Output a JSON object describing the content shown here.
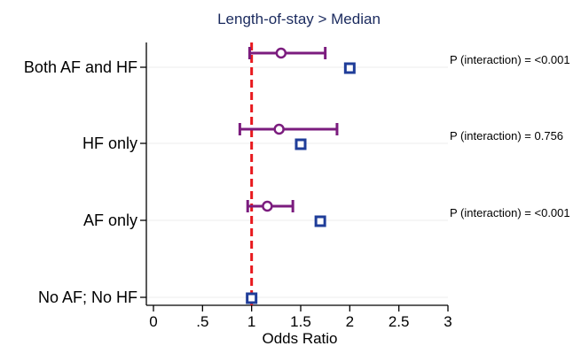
{
  "chart_data": {
    "type": "scatter",
    "title": "Length-of-stay > Median",
    "xlabel": "Odds Ratio",
    "xlim": [
      0,
      3
    ],
    "xticks": [
      {
        "value": 0,
        "label": "0"
      },
      {
        "value": 0.5,
        "label": ".5"
      },
      {
        "value": 1,
        "label": "1"
      },
      {
        "value": 1.5,
        "label": "1.5"
      },
      {
        "value": 2,
        "label": "2"
      },
      {
        "value": 2.5,
        "label": "2.5"
      },
      {
        "value": 3,
        "label": "3"
      }
    ],
    "reference_line": 1,
    "categories": [
      "Both AF and HF",
      "HF only",
      "AF only",
      "No AF; No HF"
    ],
    "series": [
      {
        "marker": "circle",
        "color": "#7b1c7e",
        "points": [
          {
            "category": "Both AF and HF",
            "or": 1.3,
            "lower": 0.98,
            "upper": 1.75
          },
          {
            "category": "HF only",
            "or": 1.28,
            "lower": 0.88,
            "upper": 1.87
          },
          {
            "category": "AF only",
            "or": 1.16,
            "lower": 0.96,
            "upper": 1.42
          }
        ]
      },
      {
        "marker": "square",
        "color": "#1f3d99",
        "points": [
          {
            "category": "Both AF and HF",
            "or": 2.0
          },
          {
            "category": "HF only",
            "or": 1.5
          },
          {
            "category": "AF only",
            "or": 1.7
          },
          {
            "category": "No AF; No HF",
            "or": 1.0
          }
        ]
      }
    ],
    "annotations": [
      {
        "category": "Both AF and HF",
        "text": "P (interaction) = <0.001"
      },
      {
        "category": "HF only",
        "text": "P (interaction) = 0.756"
      },
      {
        "category": "AF only",
        "text": "P (interaction) = <0.001"
      }
    ],
    "grid": true,
    "ref_color": "#e8191d"
  }
}
